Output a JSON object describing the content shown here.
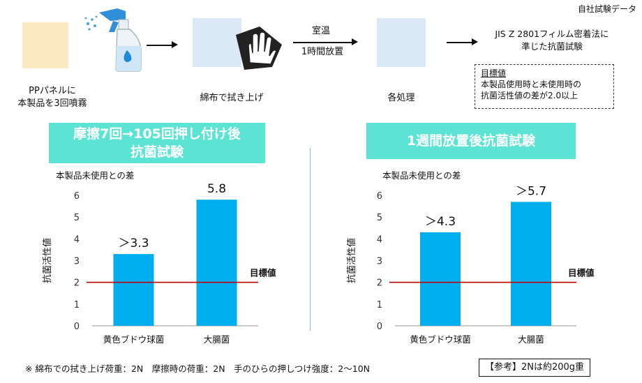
{
  "header": {
    "source_note": "自社試験データ",
    "step1": {
      "line1": "PPパネルに",
      "line2": "本製品を3回噴霧"
    },
    "step2": {
      "label": "綿布で拭き上げ"
    },
    "step3": {
      "label": "各処理",
      "arrow_top": "室温",
      "arrow_bottom": "1時間放置"
    },
    "step4": {
      "line1": "JIS Z 2801フィルム密着法に",
      "line2": "準じた抗菌試験"
    },
    "goal": {
      "title": "目標値",
      "line1": "本製品使用時と未使用時の",
      "line2": "抗菌活性値の差が2.0以上"
    }
  },
  "colors": {
    "panel_pp": "#fbe9c4",
    "panel_blue": "#dbe8f6",
    "banner": "#5be3d3",
    "bar": "#00aeef",
    "target_line": "#c00000"
  },
  "charts": {
    "left": {
      "title_line1": "摩擦7回→105回押し付け後",
      "title_line2": "抗菌試験"
    },
    "right": {
      "title_line1": "1週間放置後抗菌試験"
    }
  },
  "chart_data": [
    {
      "type": "bar",
      "title": "摩擦7回→105回押し付け後 抗菌試験",
      "subtitle": "本製品未使用との差",
      "ylabel": "抗菌活性値",
      "categories": [
        "黄色ブドウ球菌",
        "大腸菌"
      ],
      "values": [
        3.3,
        5.8
      ],
      "data_labels": [
        "＞3.3",
        "5.8"
      ],
      "ylim": [
        0,
        6
      ],
      "yticks": [
        "0",
        "1",
        "2",
        "3",
        "4",
        "5",
        "6"
      ],
      "target": {
        "value": 2.0,
        "label": "目標値"
      }
    },
    {
      "type": "bar",
      "title": "1週間放置後抗菌試験",
      "subtitle": "本製品未使用との差",
      "ylabel": "抗菌活性値",
      "categories": [
        "黄色ブドウ球菌",
        "大腸菌"
      ],
      "values": [
        4.3,
        5.7
      ],
      "data_labels": [
        "＞4.3",
        "＞5.7"
      ],
      "ylim": [
        0,
        6
      ],
      "yticks": [
        "0",
        "1",
        "2",
        "3",
        "4",
        "5",
        "6"
      ],
      "target": {
        "value": 2.0,
        "label": "目標値"
      }
    }
  ],
  "footer": {
    "note": "※ 綿布での拭き上げ荷重：2N　摩擦時の荷重：2N　手のひらの押しつけ強度：2～10N",
    "reference": "【参考】2Nは約200g重"
  }
}
